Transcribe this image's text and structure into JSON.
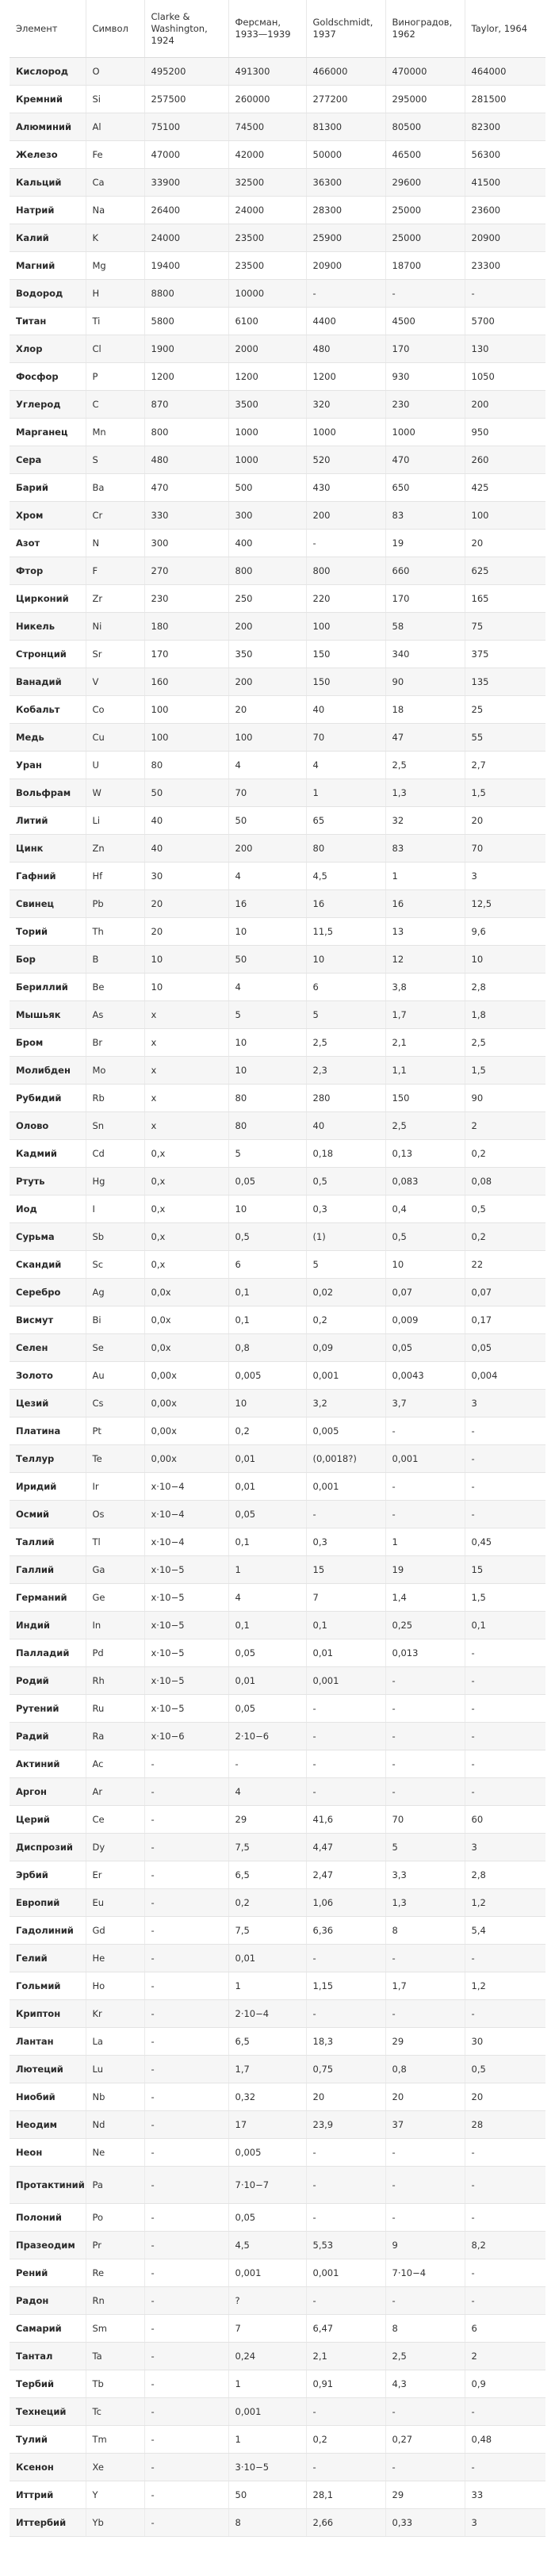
{
  "headers": [
    "Элемент",
    "Символ",
    "Clarke & Washington, 1924",
    "Ферсман, 1933—1939",
    "Goldschmidt, 1937",
    "Виноградов, 1962",
    "Taylor, 1964"
  ],
  "rows": [
    [
      "Кислород",
      "O",
      "495200",
      "491300",
      "466000",
      "470000",
      "464000"
    ],
    [
      "Кремний",
      "Si",
      "257500",
      "260000",
      "277200",
      "295000",
      "281500"
    ],
    [
      "Алюминий",
      "Al",
      "75100",
      "74500",
      "81300",
      "80500",
      "82300"
    ],
    [
      "Железо",
      "Fe",
      "47000",
      "42000",
      "50000",
      "46500",
      "56300"
    ],
    [
      "Кальций",
      "Ca",
      "33900",
      "32500",
      "36300",
      "29600",
      "41500"
    ],
    [
      "Натрий",
      "Na",
      "26400",
      "24000",
      "28300",
      "25000",
      "23600"
    ],
    [
      "Калий",
      "K",
      "24000",
      "23500",
      "25900",
      "25000",
      "20900"
    ],
    [
      "Магний",
      "Mg",
      "19400",
      "23500",
      "20900",
      "18700",
      "23300"
    ],
    [
      "Водород",
      "H",
      "8800",
      "10000",
      "-",
      "-",
      "-"
    ],
    [
      "Титан",
      "Ti",
      "5800",
      "6100",
      "4400",
      "4500",
      "5700"
    ],
    [
      "Хлор",
      "Cl",
      "1900",
      "2000",
      "480",
      "170",
      "130"
    ],
    [
      "Фосфор",
      "P",
      "1200",
      "1200",
      "1200",
      "930",
      "1050"
    ],
    [
      "Углерод",
      "C",
      "870",
      "3500",
      "320",
      "230",
      "200"
    ],
    [
      "Марганец",
      "Mn",
      "800",
      "1000",
      "1000",
      "1000",
      "950"
    ],
    [
      "Сера",
      "S",
      "480",
      "1000",
      "520",
      "470",
      "260"
    ],
    [
      "Барий",
      "Ba",
      "470",
      "500",
      "430",
      "650",
      "425"
    ],
    [
      "Хром",
      "Cr",
      "330",
      "300",
      "200",
      "83",
      "100"
    ],
    [
      "Азот",
      "N",
      "300",
      "400",
      "-",
      "19",
      "20"
    ],
    [
      "Фтор",
      "F",
      "270",
      "800",
      "800",
      "660",
      "625"
    ],
    [
      "Цирконий",
      "Zr",
      "230",
      "250",
      "220",
      "170",
      "165"
    ],
    [
      "Никель",
      "Ni",
      "180",
      "200",
      "100",
      "58",
      "75"
    ],
    [
      "Стронций",
      "Sr",
      "170",
      "350",
      "150",
      "340",
      "375"
    ],
    [
      "Ванадий",
      "V",
      "160",
      "200",
      "150",
      "90",
      "135"
    ],
    [
      "Кобальт",
      "Co",
      "100",
      "20",
      "40",
      "18",
      "25"
    ],
    [
      "Медь",
      "Cu",
      "100",
      "100",
      "70",
      "47",
      "55"
    ],
    [
      "Уран",
      "U",
      "80",
      "4",
      "4",
      "2,5",
      "2,7"
    ],
    [
      "Вольфрам",
      "W",
      "50",
      "70",
      "1",
      "1,3",
      "1,5"
    ],
    [
      "Литий",
      "Li",
      "40",
      "50",
      "65",
      "32",
      "20"
    ],
    [
      "Цинк",
      "Zn",
      "40",
      "200",
      "80",
      "83",
      "70"
    ],
    [
      "Гафний",
      "Hf",
      "30",
      "4",
      "4,5",
      "1",
      "3"
    ],
    [
      "Свинец",
      "Pb",
      "20",
      "16",
      "16",
      "16",
      "12,5"
    ],
    [
      "Торий",
      "Th",
      "20",
      "10",
      "11,5",
      "13",
      "9,6"
    ],
    [
      "Бор",
      "B",
      "10",
      "50",
      "10",
      "12",
      "10"
    ],
    [
      "Бериллий",
      "Be",
      "10",
      "4",
      "6",
      "3,8",
      "2,8"
    ],
    [
      "Мышьяк",
      "As",
      "x",
      "5",
      "5",
      "1,7",
      "1,8"
    ],
    [
      "Бром",
      "Br",
      "x",
      "10",
      "2,5",
      "2,1",
      "2,5"
    ],
    [
      "Молибден",
      "Mo",
      "x",
      "10",
      "2,3",
      "1,1",
      "1,5"
    ],
    [
      "Рубидий",
      "Rb",
      "x",
      "80",
      "280",
      "150",
      "90"
    ],
    [
      "Олово",
      "Sn",
      "x",
      "80",
      "40",
      "2,5",
      "2"
    ],
    [
      "Кадмий",
      "Cd",
      "0,x",
      "5",
      "0,18",
      "0,13",
      "0,2"
    ],
    [
      "Ртуть",
      "Hg",
      "0,x",
      "0,05",
      "0,5",
      "0,083",
      "0,08"
    ],
    [
      "Иод",
      "I",
      "0,x",
      "10",
      "0,3",
      "0,4",
      "0,5"
    ],
    [
      "Сурьма",
      "Sb",
      "0,x",
      "0,5",
      "(1)",
      "0,5",
      "0,2"
    ],
    [
      "Скандий",
      "Sc",
      "0,x",
      "6",
      "5",
      "10",
      "22"
    ],
    [
      "Серебро",
      "Ag",
      "0,0x",
      "0,1",
      "0,02",
      "0,07",
      "0,07"
    ],
    [
      "Висмут",
      "Bi",
      "0,0x",
      "0,1",
      "0,2",
      "0,009",
      "0,17"
    ],
    [
      "Селен",
      "Se",
      "0,0x",
      "0,8",
      "0,09",
      "0,05",
      "0,05"
    ],
    [
      "Золото",
      "Au",
      "0,00x",
      "0,005",
      "0,001",
      "0,0043",
      "0,004"
    ],
    [
      "Цезий",
      "Cs",
      "0,00x",
      "10",
      "3,2",
      "3,7",
      "3"
    ],
    [
      "Платина",
      "Pt",
      "0,00x",
      "0,2",
      "0,005",
      "-",
      "-"
    ],
    [
      "Теллур",
      "Te",
      "0,00x",
      "0,01",
      "(0,0018?)",
      "0,001",
      "-"
    ],
    [
      "Иридий",
      "Ir",
      "x·10−4",
      "0,01",
      "0,001",
      "-",
      "-"
    ],
    [
      "Осмий",
      "Os",
      "x·10−4",
      "0,05",
      "-",
      "-",
      "-"
    ],
    [
      "Таллий",
      "Tl",
      "x·10−4",
      "0,1",
      "0,3",
      "1",
      "0,45"
    ],
    [
      "Галлий",
      "Ga",
      "x·10−5",
      "1",
      "15",
      "19",
      "15"
    ],
    [
      "Германий",
      "Ge",
      "x·10−5",
      "4",
      "7",
      "1,4",
      "1,5"
    ],
    [
      "Индий",
      "In",
      "x·10−5",
      "0,1",
      "0,1",
      "0,25",
      "0,1"
    ],
    [
      "Палладий",
      "Pd",
      "x·10−5",
      "0,05",
      "0,01",
      "0,013",
      "-"
    ],
    [
      "Родий",
      "Rh",
      "x·10−5",
      "0,01",
      "0,001",
      "-",
      "-"
    ],
    [
      "Рутений",
      "Ru",
      "x·10−5",
      "0,05",
      "-",
      "-",
      "-"
    ],
    [
      "Радий",
      "Ra",
      "x·10−6",
      "2·10−6",
      "-",
      "-",
      "-"
    ],
    [
      "Актиний",
      "Ac",
      "-",
      "-",
      "-",
      "-",
      "-"
    ],
    [
      "Аргон",
      "Ar",
      "-",
      "4",
      "-",
      "-",
      "-"
    ],
    [
      "Церий",
      "Ce",
      "-",
      "29",
      "41,6",
      "70",
      "60"
    ],
    [
      "Диспрозий",
      "Dy",
      "-",
      "7,5",
      "4,47",
      "5",
      "3"
    ],
    [
      "Эрбий",
      "Er",
      "-",
      "6,5",
      "2,47",
      "3,3",
      "2,8"
    ],
    [
      "Европий",
      "Eu",
      "-",
      "0,2",
      "1,06",
      "1,3",
      "1,2"
    ],
    [
      "Гадолиний",
      "Gd",
      "-",
      "7,5",
      "6,36",
      "8",
      "5,4"
    ],
    [
      "Гелий",
      "He",
      "-",
      "0,01",
      "-",
      "-",
      "-"
    ],
    [
      "Гольмий",
      "Ho",
      "-",
      "1",
      "1,15",
      "1,7",
      "1,2"
    ],
    [
      "Криптон",
      "Kr",
      "-",
      "2·10−4",
      "-",
      "-",
      "-"
    ],
    [
      "Лантан",
      "La",
      "-",
      "6,5",
      "18,3",
      "29",
      "30"
    ],
    [
      "Лютеций",
      "Lu",
      "-",
      "1,7",
      "0,75",
      "0,8",
      "0,5"
    ],
    [
      "Ниобий",
      "Nb",
      "-",
      "0,32",
      "20",
      "20",
      "20"
    ],
    [
      "Неодим",
      "Nd",
      "-",
      "17",
      "23,9",
      "37",
      "28"
    ],
    [
      "Неон",
      "Ne",
      "-",
      "0,005",
      "-",
      "-",
      "-"
    ],
    [
      "Протактиний",
      "Pa",
      "-",
      "7·10−7",
      "-",
      "-",
      "-"
    ],
    [
      "Полоний",
      "Po",
      "-",
      "0,05",
      "-",
      "-",
      "-"
    ],
    [
      "Празеодим",
      "Pr",
      "-",
      "4,5",
      "5,53",
      "9",
      "8,2"
    ],
    [
      "Рений",
      "Re",
      "-",
      "0,001",
      "0,001",
      "7·10−4",
      "-"
    ],
    [
      "Радон",
      "Rn",
      "-",
      "?",
      "-",
      "-",
      "-"
    ],
    [
      "Самарий",
      "Sm",
      "-",
      "7",
      "6,47",
      "8",
      "6"
    ],
    [
      "Тантал",
      "Ta",
      "-",
      "0,24",
      "2,1",
      "2,5",
      "2"
    ],
    [
      "Тербий",
      "Tb",
      "-",
      "1",
      "0,91",
      "4,3",
      "0,9"
    ],
    [
      "Технеций",
      "Tc",
      "-",
      "0,001",
      "-",
      "-",
      "-"
    ],
    [
      "Тулий",
      "Tm",
      "-",
      "1",
      "0,2",
      "0,27",
      "0,48"
    ],
    [
      "Ксенон",
      "Xe",
      "-",
      "3·10−5",
      "-",
      "-",
      "-"
    ],
    [
      "Иттрий",
      "Y",
      "-",
      "50",
      "28,1",
      "29",
      "33"
    ],
    [
      "Иттербий",
      "Yb",
      "-",
      "8",
      "2,66",
      "0,33",
      "3"
    ]
  ]
}
